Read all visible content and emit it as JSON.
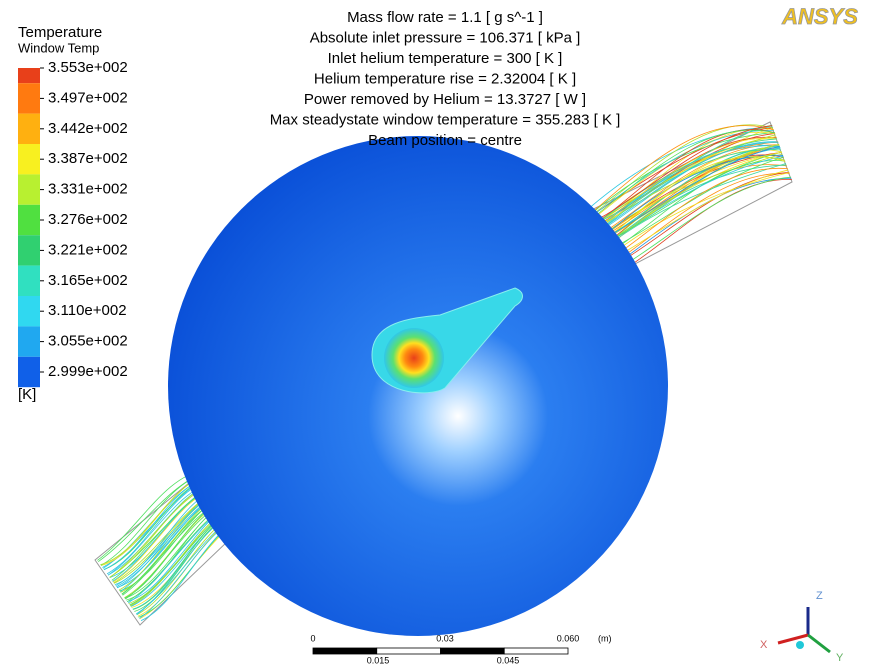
{
  "legend": {
    "title": "Temperature",
    "variable": "Window Temp",
    "labels": [
      "3.553e+002",
      "3.497e+002",
      "3.442e+002",
      "3.387e+002",
      "3.331e+002",
      "3.276e+002",
      "3.221e+002",
      "3.165e+002",
      "3.110e+002",
      "3.055e+002",
      "2.999e+002"
    ],
    "unit": "[K]"
  },
  "info": [
    "Mass flow rate = 1.1 [ g s^-1 ]",
    "Absolute inlet pressure = 106.371 [ kPa ]",
    "Inlet helium temperature = 300 [ K ]",
    "Helium temperature rise = 2.32004 [ K ]",
    "Power removed by Helium = 13.3727 [ W ]",
    "Max steadystate window temperature = 355.283 [ K ]",
    "Beam position = centre"
  ],
  "logo": "ANSYS",
  "scale": {
    "labels": [
      "0",
      "0.03",
      "0.060",
      "(m)"
    ],
    "minor_labels": [
      "0.015",
      "0.045"
    ]
  },
  "axes": [
    "Z",
    "X",
    "Y"
  ]
}
